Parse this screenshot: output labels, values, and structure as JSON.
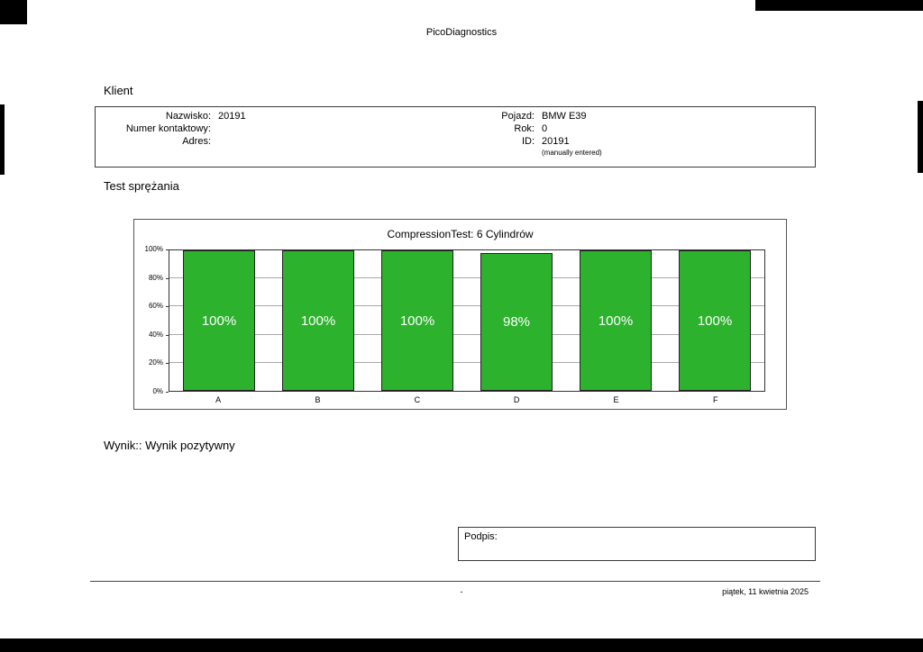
{
  "page": {
    "header_title": "PicoDiagnostics",
    "footer": {
      "center": "-",
      "right": "piątek, 11 kwietnia 2025"
    }
  },
  "client": {
    "section_title": "Klient",
    "fields_left": [
      {
        "label": "Nazwisko:",
        "value": "20191"
      },
      {
        "label": "Numer kontaktowy:",
        "value": ""
      },
      {
        "label": "Adres:",
        "value": ""
      }
    ],
    "fields_right": [
      {
        "label": "Pojazd:",
        "value": "BMW E39"
      },
      {
        "label": "Rok:",
        "value": "0"
      },
      {
        "label": "ID:",
        "value": "20191"
      }
    ],
    "note": "(manually entered)"
  },
  "test": {
    "section_title": "Test sprężania",
    "result_text": "Wynik:: Wynik pozytywny"
  },
  "signature": {
    "label": "Podpis:"
  },
  "chart_data": {
    "type": "bar",
    "title": "CompressionTest: 6 Cylindrów",
    "categories": [
      "A",
      "B",
      "C",
      "D",
      "E",
      "F"
    ],
    "values": [
      100,
      100,
      100,
      98,
      100,
      100
    ],
    "value_labels": [
      "100%",
      "100%",
      "100%",
      "98%",
      "100%",
      "100%"
    ],
    "ylim": [
      0,
      100
    ],
    "yticks": [
      "0%",
      "20%",
      "40%",
      "60%",
      "80%",
      "100%"
    ],
    "ylabel": "",
    "xlabel": "",
    "grid": true,
    "legend_position": "none",
    "bar_color": "#2db22d",
    "bar_label_color": "#ffffff"
  }
}
